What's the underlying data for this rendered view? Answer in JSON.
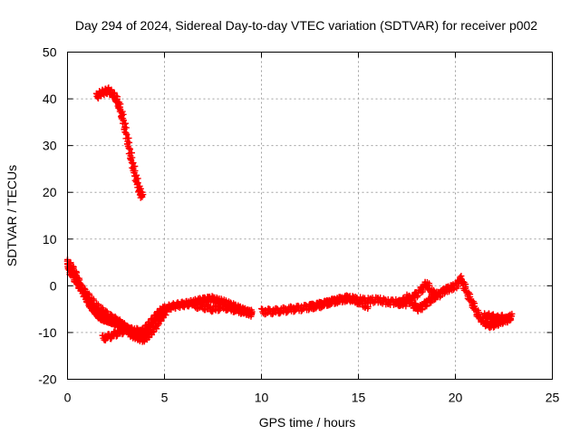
{
  "chart_data": {
    "type": "scatter",
    "title": "Day 294 of 2024, Sidereal Day-to-day VTEC variation (SDTVAR) for receiver p002",
    "xlabel": "GPS time / hours",
    "ylabel": "SDTVAR / TECUs",
    "xlim": [
      0,
      25
    ],
    "ylim": [
      -20,
      50
    ],
    "xticks": [
      "0",
      "5",
      "10",
      "15",
      "20",
      "25"
    ],
    "yticks": [
      "-20",
      "-10",
      "0",
      "10",
      "20",
      "30",
      "40",
      "50"
    ],
    "grid": true,
    "marker": "+",
    "series": [
      {
        "name": "SDTVAR",
        "color": "#ff0000",
        "segments": [
          {
            "x": [
              1.5,
              1.7,
              1.9,
              2.1,
              2.3,
              2.5,
              2.7,
              2.9,
              3.1,
              3.3,
              3.5,
              3.7,
              3.85
            ],
            "y": [
              40.5,
              41.2,
              41.5,
              41.8,
              41.0,
              40.0,
              38.0,
              35.0,
              31.0,
              27.0,
              23.5,
              20.5,
              19.0
            ]
          },
          {
            "x": [
              0.0,
              0.2,
              0.4,
              0.6,
              0.8,
              1.0,
              1.2,
              1.4,
              1.6,
              1.8,
              2.0,
              2.2,
              2.4,
              2.6,
              2.8,
              3.0,
              3.2,
              3.4,
              3.6,
              3.8,
              4.0,
              4.2,
              4.4,
              4.6,
              4.8,
              5.0
            ],
            "y": [
              5.0,
              4.0,
              2.5,
              0.5,
              -1.5,
              -3.0,
              -4.5,
              -5.5,
              -6.5,
              -7.0,
              -7.2,
              -7.5,
              -7.8,
              -8.0,
              -8.5,
              -9.0,
              -9.5,
              -10.0,
              -10.3,
              -10.0,
              -9.5,
              -8.5,
              -7.5,
              -6.5,
              -5.5,
              -5.0
            ]
          },
          {
            "x": [
              0.0,
              0.3,
              0.6,
              0.9,
              1.2,
              1.5,
              1.8,
              2.1,
              2.4,
              2.7,
              3.0,
              3.3,
              3.6,
              3.9,
              4.2,
              4.5,
              4.8,
              5.1
            ],
            "y": [
              4.0,
              2.0,
              0.0,
              -1.5,
              -3.0,
              -4.5,
              -5.5,
              -6.5,
              -7.2,
              -8.0,
              -9.0,
              -10.5,
              -11.0,
              -11.5,
              -10.5,
              -9.0,
              -7.0,
              -5.5
            ]
          },
          {
            "x": [
              1.8,
              2.2,
              2.6,
              3.0,
              3.4,
              3.8,
              4.2
            ],
            "y": [
              -11.2,
              -10.8,
              -10.0,
              -9.5,
              -9.5,
              -10.0,
              -10.5
            ]
          },
          {
            "x": [
              5.0,
              5.3,
              5.6,
              5.9,
              6.2,
              6.5,
              6.8,
              7.1,
              7.4,
              7.7,
              8.0,
              8.3,
              8.6,
              8.9,
              9.2,
              9.5
            ],
            "y": [
              -5.0,
              -4.5,
              -4.2,
              -4.0,
              -3.8,
              -3.5,
              -3.2,
              -3.0,
              -2.8,
              -3.2,
              -3.5,
              -4.0,
              -4.5,
              -5.0,
              -5.5,
              -6.0
            ]
          },
          {
            "x": [
              6.5,
              7.0,
              7.5,
              8.0,
              8.5,
              9.0,
              9.5
            ],
            "y": [
              -4.2,
              -4.5,
              -5.0,
              -4.5,
              -5.0,
              -5.5,
              -5.8
            ]
          },
          {
            "x": [
              10.0,
              10.5,
              11.0,
              11.5,
              12.0,
              12.5,
              13.0,
              13.5,
              14.0,
              14.5,
              15.0,
              15.5,
              16.0,
              16.5,
              17.0,
              17.5
            ],
            "y": [
              -5.5,
              -5.5,
              -5.3,
              -5.0,
              -4.8,
              -4.5,
              -4.0,
              -3.5,
              -3.0,
              -2.8,
              -3.0,
              -3.2,
              -3.0,
              -3.5,
              -3.5,
              -3.8
            ]
          },
          {
            "x": [
              12.5,
              13.0,
              13.5,
              14.0,
              14.5,
              15.0,
              15.5
            ],
            "y": [
              -4.5,
              -4.2,
              -3.5,
              -3.0,
              -2.5,
              -3.5,
              -4.5
            ]
          },
          {
            "x": [
              17.0,
              17.4,
              17.8,
              18.2,
              18.5,
              18.8,
              19.1,
              19.4,
              19.7,
              20.0,
              20.3
            ],
            "y": [
              -4.0,
              -3.0,
              -2.5,
              -1.0,
              0.5,
              -1.5,
              -2.0,
              -1.0,
              -0.5,
              0.0,
              1.5
            ]
          },
          {
            "x": [
              17.5,
              17.8,
              18.1,
              18.4,
              18.7,
              19.0
            ],
            "y": [
              -2.5,
              -4.0,
              -5.0,
              -4.0,
              -3.0,
              -2.0
            ]
          },
          {
            "x": [
              20.3,
              20.6,
              20.9,
              21.2,
              21.5,
              21.8,
              22.1,
              22.4,
              22.7,
              22.9
            ],
            "y": [
              1.5,
              -1.5,
              -4.0,
              -6.5,
              -8.0,
              -8.5,
              -8.0,
              -7.5,
              -7.0,
              -6.5
            ]
          },
          {
            "x": [
              21.5,
              21.8,
              22.1,
              22.4,
              22.7
            ],
            "y": [
              -6.5,
              -6.5,
              -7.0,
              -6.8,
              -7.5
            ]
          }
        ]
      }
    ]
  }
}
